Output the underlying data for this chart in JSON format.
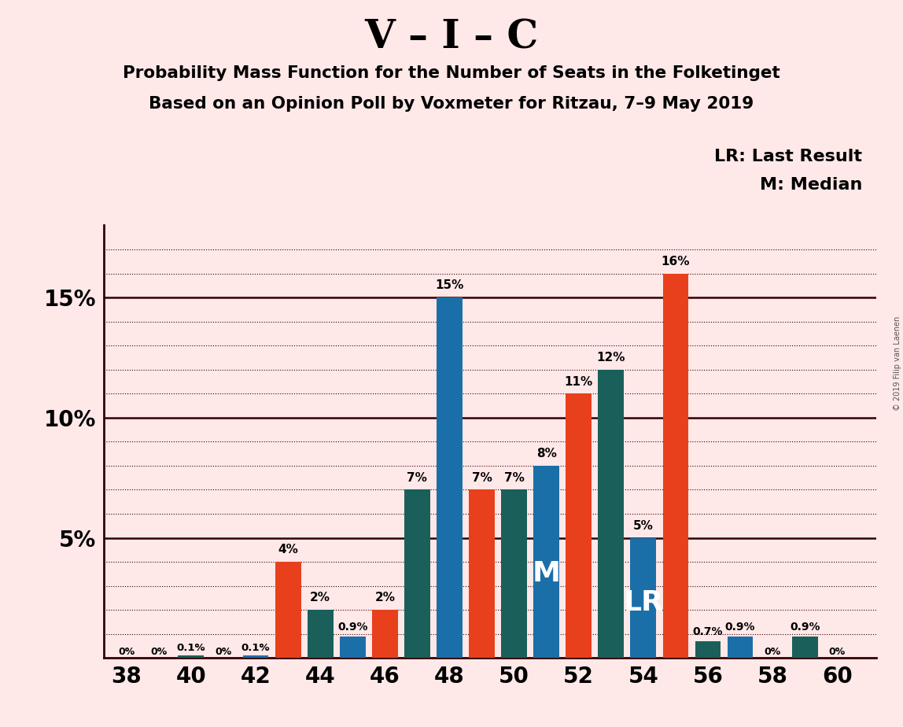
{
  "title_main": "V – I – C",
  "title_sub1": "Probability Mass Function for the Number of Seats in the Folketinget",
  "title_sub2": "Based on an Opinion Poll by Voxmeter for Ritzau, 7–9 May 2019",
  "copyright": "© 2019 Filip van Laenen",
  "legend_lr": "LR: Last Result",
  "legend_m": "M: Median",
  "background_color": "#FFE8E8",
  "bar_color_orange": "#E8401C",
  "bar_color_blue": "#1B6FA8",
  "bar_color_teal": "#1A5F5A",
  "bar_seats": [
    38,
    39,
    40,
    41,
    42,
    43,
    44,
    45,
    46,
    47,
    48,
    49,
    50,
    51,
    52,
    53,
    54,
    55,
    56,
    57,
    58,
    59,
    60
  ],
  "bar_colors_k": [
    "orange",
    "orange",
    "teal",
    "orange",
    "blue",
    "orange",
    "teal",
    "blue",
    "orange",
    "teal",
    "blue",
    "orange",
    "teal",
    "blue",
    "orange",
    "teal",
    "blue",
    "orange",
    "teal",
    "blue",
    "blue",
    "teal",
    "teal"
  ],
  "bar_vals": [
    0.0,
    0.0,
    0.1,
    0.0,
    0.1,
    4.0,
    2.0,
    0.9,
    2.0,
    7.0,
    15.0,
    7.0,
    7.0,
    8.0,
    11.0,
    12.0,
    5.0,
    16.0,
    0.7,
    0.9,
    0.0,
    0.9,
    0.0
  ],
  "bar_labels": [
    "0%",
    "0%",
    "0.1%",
    "0%",
    "0.1%",
    "4%",
    "2%",
    "0.9%",
    "2%",
    "7%",
    "15%",
    "7%",
    "7%",
    "8%",
    "11%",
    "12%",
    "5%",
    "16%",
    "0.7%",
    "0.9%",
    "0%",
    "0.9%",
    "0%"
  ],
  "median_seat": 51,
  "lr_seat": 54,
  "xtick_seats": [
    38,
    40,
    42,
    44,
    46,
    48,
    50,
    52,
    54,
    56,
    58,
    60
  ],
  "solid_hlines": [
    5,
    10,
    15
  ],
  "dotted_hlines": [
    1,
    2,
    3,
    4,
    6,
    7,
    8,
    9,
    11,
    12,
    13,
    14,
    16,
    17
  ],
  "ylim": [
    0,
    18
  ],
  "xlim_left": 37.3,
  "xlim_right": 61.2,
  "bar_width": 0.8
}
